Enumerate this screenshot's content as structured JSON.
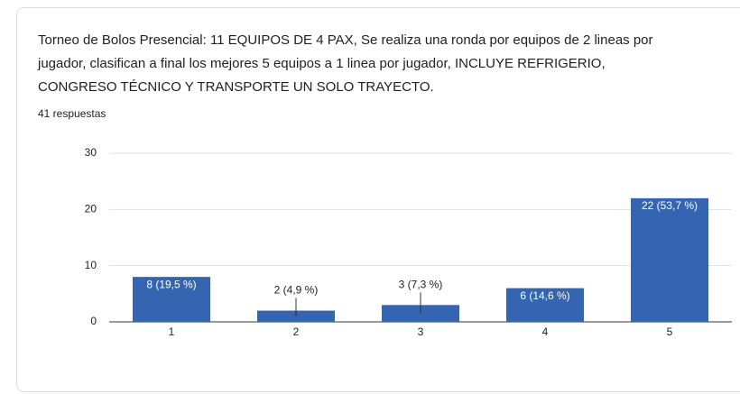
{
  "chart_data": {
    "type": "bar",
    "title": "Torneo de Bolos Presencial: 11 EQUIPOS DE 4 PAX, Se realiza una ronda por equipos de 2 lineas por jugador, clasifican a final los mejores 5 equipos a 1 linea por jugador, INCLUYE REFRIGERIO, CONGRESO TÉCNICO Y TRANSPORTE UN SOLO TRAYECTO.",
    "subtitle": "41 respuestas",
    "categories": [
      "1",
      "2",
      "3",
      "4",
      "5"
    ],
    "values": [
      8,
      2,
      3,
      6,
      22
    ],
    "value_labels": [
      "8 (19,5 %)",
      "2 (4,9 %)",
      "3 (7,3 %)",
      "6 (14,6 %)",
      "22 (53,7 %)"
    ],
    "color": "#3565b0",
    "ylim": [
      0,
      30
    ],
    "yticks": [
      0,
      10,
      20,
      30
    ],
    "grid": true
  }
}
